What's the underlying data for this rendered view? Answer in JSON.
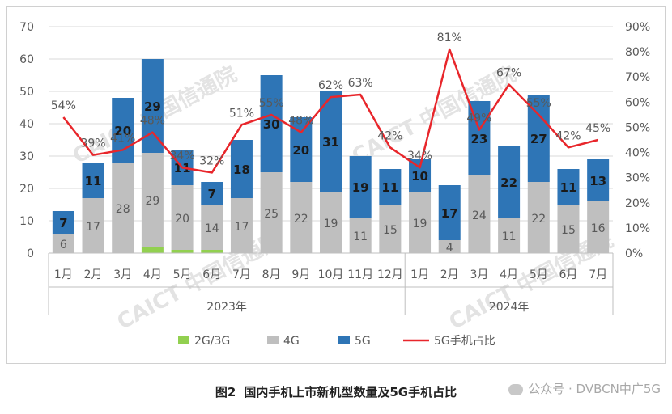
{
  "chart_data": {
    "type": "bar",
    "stacked": true,
    "categories": [
      "1月",
      "2月",
      "3月",
      "4月",
      "5月",
      "6月",
      "7月",
      "8月",
      "9月",
      "10月",
      "11月",
      "12月",
      "1月",
      "2月",
      "3月",
      "4月",
      "5月",
      "6月",
      "7月"
    ],
    "year_groups": [
      {
        "label": "2023年",
        "count": 12
      },
      {
        "label": "2024年",
        "count": 7
      }
    ],
    "series": [
      {
        "name": "2G/3G",
        "color": "#92d050",
        "values": [
          0,
          0,
          0,
          2,
          1,
          1,
          0,
          0,
          0,
          0,
          0,
          0,
          0,
          0,
          0,
          0,
          0,
          0,
          0
        ],
        "labels": [
          "",
          "",
          "",
          "",
          "",
          "",
          "",
          "",
          "",
          "",
          "",
          "",
          "",
          "",
          "",
          "",
          "",
          "",
          ""
        ]
      },
      {
        "name": "4G",
        "color": "#bfbfbf",
        "values": [
          6,
          17,
          28,
          29,
          20,
          14,
          17,
          25,
          22,
          19,
          11,
          15,
          19,
          4,
          24,
          11,
          22,
          15,
          16
        ],
        "labels": [
          "6",
          "17",
          "28",
          "29",
          "20",
          "14",
          "17",
          "25",
          "22",
          "19",
          "11",
          "15",
          "19",
          "4",
          "24",
          "11",
          "22",
          "15",
          "16"
        ]
      },
      {
        "name": "5G",
        "color": "#2e75b6",
        "values": [
          7,
          11,
          20,
          29,
          11,
          7,
          18,
          30,
          20,
          31,
          19,
          11,
          10,
          17,
          23,
          22,
          27,
          11,
          13
        ],
        "labels": [
          "7",
          "11",
          "20",
          "29",
          "11",
          "7",
          "18",
          "30",
          "20",
          "31",
          "19",
          "11",
          "10",
          "17",
          "23",
          "22",
          "27",
          "11",
          "13"
        ]
      }
    ],
    "line_series": {
      "name": "5G手机占比",
      "color": "#e8262b",
      "values": [
        54,
        39,
        41,
        48,
        34,
        32,
        51,
        55,
        48,
        62,
        63,
        42,
        34,
        81,
        49,
        67,
        55,
        42,
        45
      ],
      "labels": [
        "54%",
        "39%",
        "41%",
        "48%",
        "34%",
        "32%",
        "51%",
        "55%",
        "48%",
        "62%",
        "63%",
        "42%",
        "34%",
        "81%",
        "49%",
        "67%",
        "55%",
        "42%",
        "45%"
      ]
    },
    "y_left": {
      "min": 0,
      "max": 70,
      "ticks": [
        "0",
        "10",
        "20",
        "30",
        "40",
        "50",
        "60",
        "70"
      ]
    },
    "y_right": {
      "min": 0,
      "max": 90,
      "ticks": [
        "0%",
        "10%",
        "20%",
        "30%",
        "40%",
        "50%",
        "60%",
        "70%",
        "80%",
        "90%"
      ]
    },
    "grid": true,
    "legend_position": "bottom",
    "legend": [
      "2G/3G",
      "4G",
      "5G",
      "5G手机占比"
    ]
  },
  "caption": {
    "figure": "图2",
    "text": "国内手机上市新机型数量及5G手机占比"
  },
  "watermarks": {
    "chart_text": "CAICT 中国信通院",
    "source": "公众号 · DVBCN中广5G"
  }
}
